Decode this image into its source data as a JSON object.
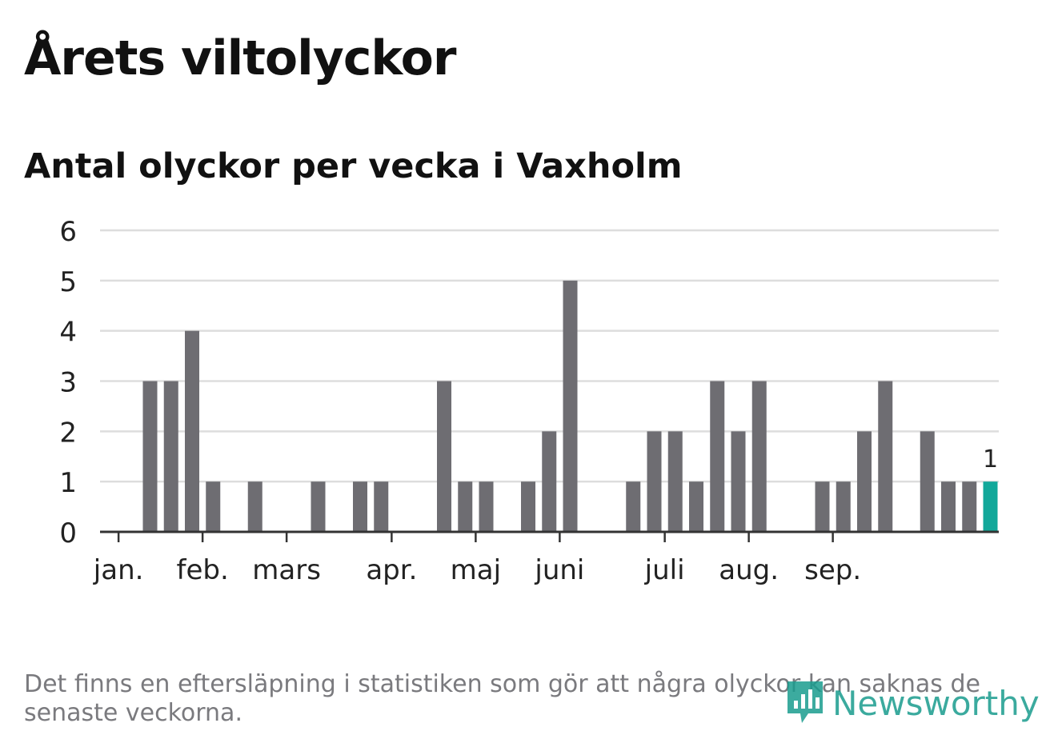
{
  "header": {
    "title": "Årets viltolyckor",
    "subtitle": "Antal olyckor per vecka i Vaxholm"
  },
  "footnote": "Det finns en eftersläpning i statistiken som gör att några olyckor kan saknas de senaste veckorna.",
  "brand": {
    "name": "Newsworthy"
  },
  "colors": {
    "bar": "#6e6d72",
    "highlight": "#12a89a",
    "grid": "#dddddd",
    "axis": "#333333",
    "text": "#222222"
  },
  "chart_data": {
    "type": "bar",
    "title": "Antal olyckor per vecka i Vaxholm",
    "xlabel": "",
    "ylabel": "",
    "ylim": [
      0,
      6
    ],
    "yticks": [
      0,
      1,
      2,
      3,
      4,
      5,
      6
    ],
    "grid": true,
    "week_count": 43,
    "weeks": [
      1,
      2,
      3,
      4,
      5,
      6,
      7,
      8,
      9,
      10,
      11,
      12,
      13,
      14,
      15,
      16,
      17,
      18,
      19,
      20,
      21,
      22,
      23,
      24,
      25,
      26,
      27,
      28,
      29,
      30,
      31,
      32,
      33,
      34,
      35,
      36,
      37,
      38,
      39,
      40,
      41,
      42,
      43
    ],
    "values": [
      0,
      0,
      3,
      3,
      4,
      1,
      0,
      1,
      0,
      0,
      1,
      0,
      1,
      1,
      0,
      0,
      3,
      1,
      1,
      0,
      1,
      2,
      5,
      0,
      0,
      1,
      2,
      2,
      1,
      3,
      2,
      3,
      0,
      0,
      1,
      1,
      2,
      3,
      0,
      2,
      1,
      1,
      1
    ],
    "highlight_index": 42,
    "highlight_label": "1",
    "month_ticks": [
      {
        "label": "jan.",
        "week": 1.5
      },
      {
        "label": "feb.",
        "week": 5.5
      },
      {
        "label": "mars",
        "week": 9.5
      },
      {
        "label": "apr.",
        "week": 14.5
      },
      {
        "label": "maj",
        "week": 18.5
      },
      {
        "label": "juni",
        "week": 22.5
      },
      {
        "label": "juli",
        "week": 27.5
      },
      {
        "label": "aug.",
        "week": 31.5
      },
      {
        "label": "sep.",
        "week": 35.5
      }
    ]
  }
}
